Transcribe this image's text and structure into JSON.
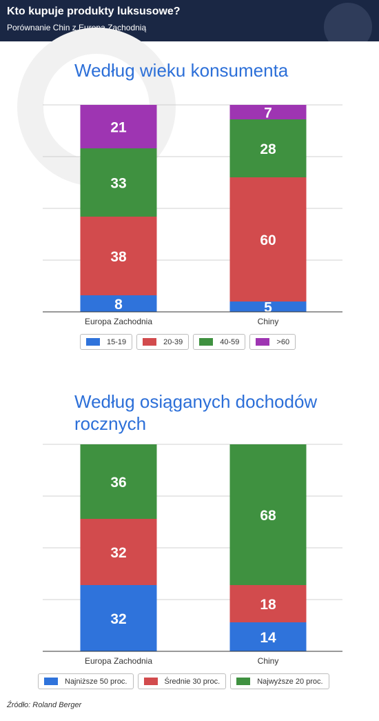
{
  "header": {
    "title": "Kto kupuje produkty luksusowe?",
    "subtitle": "Porównanie Chin z Europą Zachodnią"
  },
  "source": "Źródło: Roland Berger",
  "chart_data": [
    {
      "type": "bar",
      "stacked": true,
      "title": "Według wieku konsumenta",
      "categories": [
        "Europa Zachodnia",
        "Chiny"
      ],
      "ylim": [
        0,
        100
      ],
      "grid": true,
      "legend_placement": "bottom",
      "series": [
        {
          "name": "15-19",
          "values": [
            8,
            5
          ],
          "color": "#2f73db"
        },
        {
          "name": "20-39",
          "values": [
            38,
            60
          ],
          "color": "#d24b4d"
        },
        {
          "name": "40-59",
          "values": [
            33,
            28
          ],
          "color": "#3f9140"
        },
        {
          "name": ">60",
          "values": [
            21,
            7
          ],
          "color": "#9e35b2"
        }
      ]
    },
    {
      "type": "bar",
      "stacked": true,
      "title": "Według osiąganych dochodów rocznych",
      "categories": [
        "Europa Zachodnia",
        "Chiny"
      ],
      "ylim": [
        0,
        100
      ],
      "grid": true,
      "legend_placement": "bottom",
      "series": [
        {
          "name": "Najniższe 50 proc.",
          "values": [
            32,
            14
          ],
          "color": "#2f73db"
        },
        {
          "name": "Średnie 30 proc.",
          "values": [
            32,
            18
          ],
          "color": "#d24b4d"
        },
        {
          "name": "Najwyższe 20 proc.",
          "values": [
            36,
            68
          ],
          "color": "#3f9140"
        }
      ]
    }
  ]
}
